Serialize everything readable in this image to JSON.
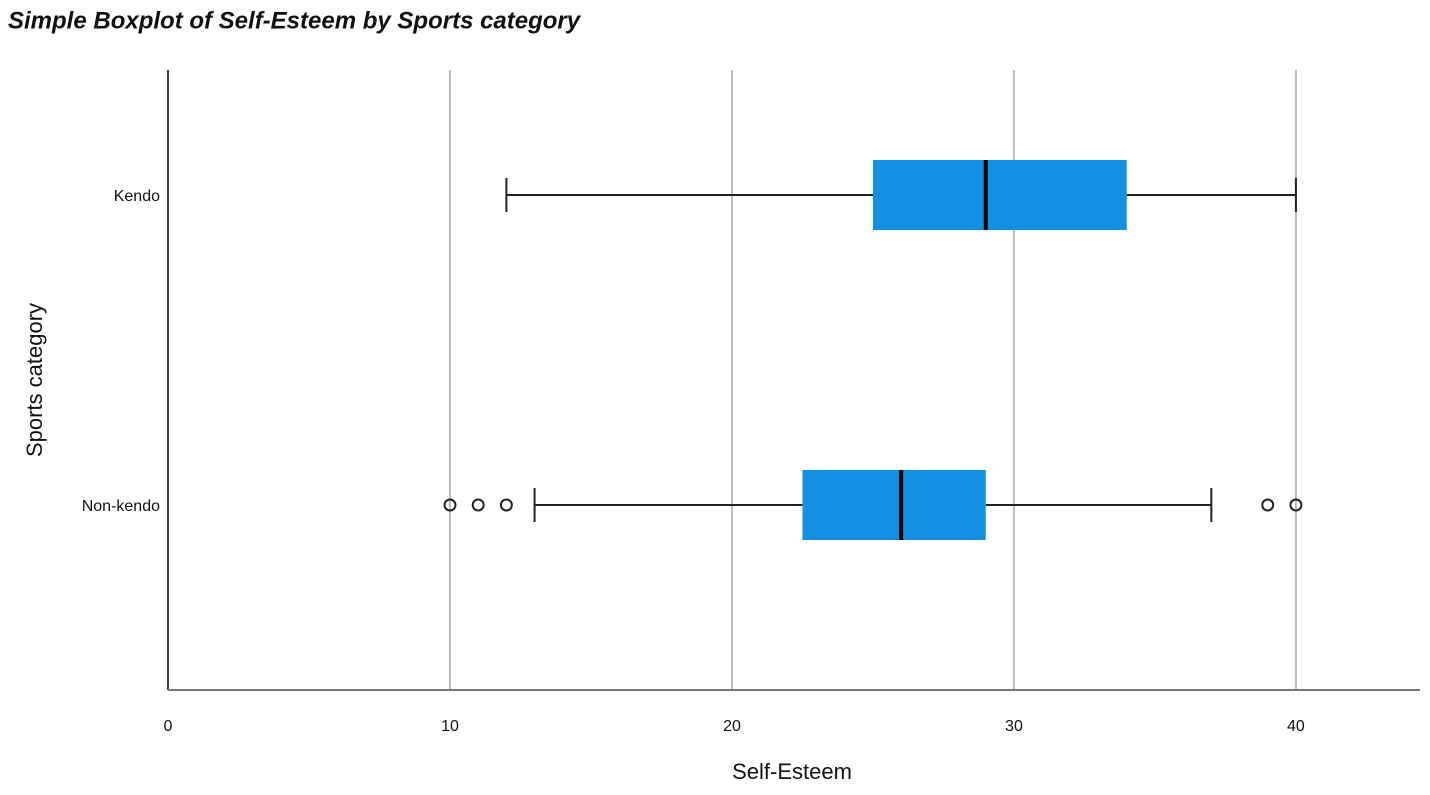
{
  "chart_data": {
    "type": "boxplot",
    "orientation": "horizontal",
    "title": "Simple Boxplot of Self-Esteem by Sports category",
    "x_label": "Self-Esteem",
    "y_label": "Sports category",
    "categories": [
      "Kendo",
      "Non-kendo"
    ],
    "boxes": [
      {
        "low": 12,
        "q1": 25,
        "median": 29,
        "q3": 34,
        "high": 40,
        "outliers": []
      },
      {
        "low": 13,
        "q1": 22.5,
        "median": 26,
        "q3": 29,
        "high": 37,
        "outliers": [
          10,
          11,
          12,
          39,
          40
        ]
      }
    ],
    "color": "#1490e3",
    "xlim": [
      0,
      44.4
    ],
    "xticks": [
      0,
      10,
      20,
      30,
      40
    ],
    "grid": true
  }
}
